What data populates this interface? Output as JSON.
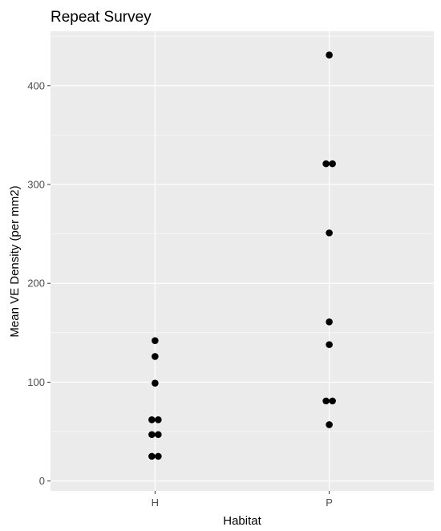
{
  "chart_data": {
    "type": "scatter",
    "title": "Repeat Survey",
    "xlabel": "Habitat",
    "ylabel": "Mean VE Density (per mm2)",
    "categories": [
      "H",
      "P"
    ],
    "y_ticks": [
      "0",
      "100",
      "200",
      "300",
      "400"
    ],
    "ylim": [
      -10,
      455
    ],
    "grid": true,
    "points": [
      {
        "x": "H",
        "y": 142
      },
      {
        "x": "H",
        "y": 126
      },
      {
        "x": "H",
        "y": 99
      },
      {
        "x": "H",
        "y": 62
      },
      {
        "x": "H",
        "y": 62
      },
      {
        "x": "H",
        "y": 47
      },
      {
        "x": "H",
        "y": 47
      },
      {
        "x": "H",
        "y": 25
      },
      {
        "x": "H",
        "y": 25
      },
      {
        "x": "P",
        "y": 431
      },
      {
        "x": "P",
        "y": 321
      },
      {
        "x": "P",
        "y": 321
      },
      {
        "x": "P",
        "y": 251
      },
      {
        "x": "P",
        "y": 161
      },
      {
        "x": "P",
        "y": 138
      },
      {
        "x": "P",
        "y": 81
      },
      {
        "x": "P",
        "y": 81
      },
      {
        "x": "P",
        "y": 57
      }
    ],
    "colors": {
      "panel": "#ebebeb",
      "grid_major": "#ffffff",
      "point": "#000000",
      "tick": "#333333"
    }
  }
}
